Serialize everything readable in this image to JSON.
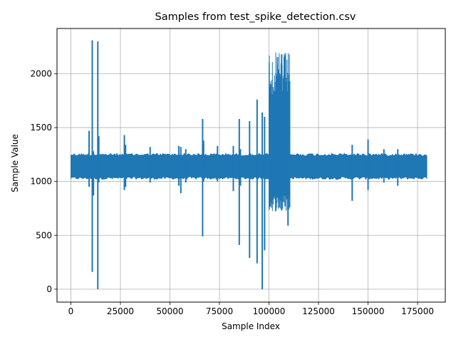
{
  "chart_data": {
    "type": "line",
    "title": "Samples from test_spike_detection.csv",
    "xlabel": "Sample Index",
    "ylabel": "Sample Value",
    "xlim": [
      -7000,
      189000
    ],
    "ylim": [
      -120,
      2420
    ],
    "xticks": [
      0,
      25000,
      50000,
      75000,
      100000,
      125000,
      150000,
      175000
    ],
    "yticks": [
      0,
      500,
      1000,
      1500,
      2000
    ],
    "grid": true,
    "series_color": "#1f77b4",
    "series": [
      {
        "x_range": [
          0,
          180000
        ],
        "baseline": {
          "low": 1020,
          "high": 1260
        },
        "dense_regions": [
          {
            "x": [
              100000,
              110500
            ],
            "low": 720,
            "high": 2200
          }
        ],
        "spikes": [
          {
            "x": 9200,
            "min": 950,
            "max": 1470
          },
          {
            "x": 10800,
            "min": 160,
            "max": 2310
          },
          {
            "x": 11400,
            "min": 870,
            "max": 1280
          },
          {
            "x": 13600,
            "min": 0,
            "max": 2300
          },
          {
            "x": 14100,
            "min": 990,
            "max": 1420
          },
          {
            "x": 27000,
            "min": 920,
            "max": 1430
          },
          {
            "x": 27600,
            "min": 950,
            "max": 1340
          },
          {
            "x": 40000,
            "min": 990,
            "max": 1320
          },
          {
            "x": 54500,
            "min": 960,
            "max": 1330
          },
          {
            "x": 55500,
            "min": 890,
            "max": 1320
          },
          {
            "x": 58000,
            "min": 990,
            "max": 1300
          },
          {
            "x": 66500,
            "min": 490,
            "max": 1580
          },
          {
            "x": 67000,
            "min": 1000,
            "max": 1380
          },
          {
            "x": 74000,
            "min": 1000,
            "max": 1330
          },
          {
            "x": 82000,
            "min": 910,
            "max": 1330
          },
          {
            "x": 85000,
            "min": 410,
            "max": 1580
          },
          {
            "x": 85600,
            "min": 960,
            "max": 1300
          },
          {
            "x": 90200,
            "min": 290,
            "max": 1560
          },
          {
            "x": 94000,
            "min": 240,
            "max": 1760
          },
          {
            "x": 96600,
            "min": 0,
            "max": 1640
          },
          {
            "x": 97800,
            "min": 360,
            "max": 1600
          },
          {
            "x": 106400,
            "min": 730,
            "max": 2180
          },
          {
            "x": 108000,
            "min": 880,
            "max": 1900
          },
          {
            "x": 109600,
            "min": 590,
            "max": 1800
          },
          {
            "x": 110400,
            "min": 760,
            "max": 1930
          },
          {
            "x": 142000,
            "min": 820,
            "max": 1340
          },
          {
            "x": 150000,
            "min": 920,
            "max": 1390
          },
          {
            "x": 158000,
            "min": 990,
            "max": 1300
          },
          {
            "x": 165000,
            "min": 960,
            "max": 1300
          }
        ]
      }
    ]
  }
}
